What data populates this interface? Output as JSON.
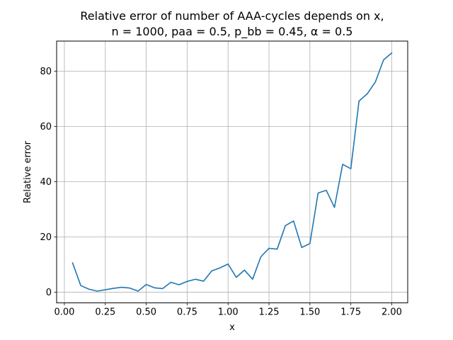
{
  "chart_data": {
    "type": "line",
    "title_lines": [
      "Relative error of number of AAA-cycles depends on x,",
      "n = 1000, paa = 0.5, p_bb = 0.45, α = 0.5"
    ],
    "xlabel": "x",
    "ylabel": "Relative error",
    "xlim": [
      -0.0475,
      2.0975
    ],
    "ylim": [
      -3.86,
      90.9
    ],
    "x_ticks": [
      0.0,
      0.25,
      0.5,
      0.75,
      1.0,
      1.25,
      1.5,
      1.75,
      2.0
    ],
    "x_tick_labels": [
      "0.00",
      "0.25",
      "0.50",
      "0.75",
      "1.00",
      "1.25",
      "1.50",
      "1.75",
      "2.00"
    ],
    "y_ticks": [
      0,
      20,
      40,
      60,
      80
    ],
    "y_tick_labels": [
      "0",
      "20",
      "40",
      "60",
      "80"
    ],
    "grid": true,
    "color": "#1f77b4",
    "x": [
      0.05,
      0.1,
      0.15,
      0.2,
      0.25,
      0.3,
      0.35,
      0.4,
      0.45,
      0.5,
      0.55,
      0.6,
      0.65,
      0.7,
      0.75,
      0.8,
      0.85,
      0.9,
      0.95,
      1.0,
      1.05,
      1.1,
      1.15,
      1.2,
      1.25,
      1.3,
      1.35,
      1.4,
      1.45,
      1.5,
      1.55,
      1.6,
      1.65,
      1.7,
      1.75,
      1.8,
      1.85,
      1.9,
      1.95,
      2.0
    ],
    "y": [
      10.6,
      2.4,
      1.1,
      0.4,
      0.9,
      1.4,
      1.8,
      1.5,
      0.4,
      2.8,
      1.6,
      1.3,
      3.6,
      2.7,
      3.9,
      4.7,
      4.0,
      7.7,
      8.8,
      10.2,
      5.4,
      8.0,
      4.7,
      12.8,
      15.9,
      15.6,
      24.1,
      25.8,
      16.2,
      17.6,
      35.9,
      36.9,
      30.7,
      46.3,
      44.7,
      69.2,
      71.8,
      76.1,
      84.1,
      86.6
    ]
  }
}
